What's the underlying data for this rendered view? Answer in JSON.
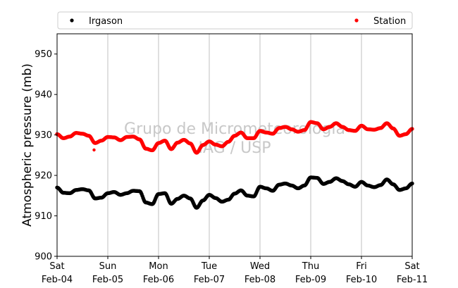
{
  "chart_data": {
    "type": "scatter",
    "title": "",
    "xlabel": "",
    "ylabel": "Atmospheric pressure (mb)",
    "ylim": [
      900,
      955
    ],
    "yticks": [
      900,
      910,
      920,
      930,
      940,
      950
    ],
    "xlim": [
      "2017-02-04",
      "2017-02-11"
    ],
    "xticks": [
      {
        "day": 0,
        "line1": "Sat",
        "line2": "Feb-04"
      },
      {
        "day": 1,
        "line1": "Sun",
        "line2": "Feb-05"
      },
      {
        "day": 2,
        "line1": "Mon",
        "line2": "Feb-06"
      },
      {
        "day": 3,
        "line1": "Tue",
        "line2": "Feb-07"
      },
      {
        "day": 4,
        "line1": "Wed",
        "line2": "Feb-08"
      },
      {
        "day": 5,
        "line1": "Thu",
        "line2": "Feb-09"
      },
      {
        "day": 6,
        "line1": "Fri",
        "line2": "Feb-10"
      },
      {
        "day": 7,
        "line1": "Sat",
        "line2": "Feb-11"
      }
    ],
    "grid": "vertical",
    "legend_position": "top",
    "watermark": [
      "Grupo de Micrometeorologia",
      "IAG / USP"
    ],
    "series": [
      {
        "name": "Irgason",
        "color": "#000000",
        "x": [
          "2017-02-04 00:00",
          "2017-02-04 03:00",
          "2017-02-04 06:00",
          "2017-02-04 09:00",
          "2017-02-04 12:00",
          "2017-02-04 15:00",
          "2017-02-04 18:00",
          "2017-02-04 21:00",
          "2017-02-05 00:00",
          "2017-02-05 03:00",
          "2017-02-05 06:00",
          "2017-02-05 09:00",
          "2017-02-05 12:00",
          "2017-02-05 15:00",
          "2017-02-05 18:00",
          "2017-02-05 21:00",
          "2017-02-06 00:00",
          "2017-02-06 03:00",
          "2017-02-06 06:00",
          "2017-02-06 09:00",
          "2017-02-06 12:00",
          "2017-02-06 15:00",
          "2017-02-06 18:00",
          "2017-02-06 21:00",
          "2017-02-07 00:00",
          "2017-02-07 03:00",
          "2017-02-07 06:00",
          "2017-02-07 09:00",
          "2017-02-07 12:00",
          "2017-02-07 15:00",
          "2017-02-07 18:00",
          "2017-02-07 21:00",
          "2017-02-08 00:00",
          "2017-02-08 03:00",
          "2017-02-08 06:00",
          "2017-02-08 09:00",
          "2017-02-08 12:00",
          "2017-02-08 15:00",
          "2017-02-08 18:00",
          "2017-02-08 21:00",
          "2017-02-09 00:00",
          "2017-02-09 03:00",
          "2017-02-09 06:00",
          "2017-02-09 09:00",
          "2017-02-09 12:00",
          "2017-02-09 15:00",
          "2017-02-09 18:00",
          "2017-02-09 21:00",
          "2017-02-10 00:00",
          "2017-02-10 03:00",
          "2017-02-10 06:00",
          "2017-02-10 09:00",
          "2017-02-10 12:00",
          "2017-02-10 15:00",
          "2017-02-10 18:00",
          "2017-02-10 21:00",
          "2017-02-11 00:00"
        ],
        "y": [
          917,
          915.7,
          915.6,
          916.4,
          916.6,
          916.3,
          914.3,
          914.5,
          915.6,
          915.9,
          915.2,
          915.6,
          916.2,
          916.1,
          913.3,
          912.9,
          915.4,
          915.6,
          913.0,
          914.2,
          915.0,
          914.3,
          912.0,
          913.8,
          915.2,
          914.4,
          913.5,
          914.0,
          915.5,
          916.3,
          915.0,
          914.8,
          917.2,
          916.8,
          916.2,
          917.7,
          918.0,
          917.5,
          916.8,
          917.5,
          919.5,
          919.4,
          917.9,
          918.4,
          919.3,
          918.6,
          917.8,
          917.2,
          918.4,
          917.5,
          917.1,
          917.6,
          919.0,
          917.8,
          916.4,
          916.8,
          918.0
        ]
      },
      {
        "name": "Station",
        "color": "#ff0000",
        "x": [
          "2017-02-04 00:00",
          "2017-02-04 03:00",
          "2017-02-04 06:00",
          "2017-02-04 09:00",
          "2017-02-04 12:00",
          "2017-02-04 15:00",
          "2017-02-04 18:00",
          "2017-02-04 21:00",
          "2017-02-05 00:00",
          "2017-02-05 03:00",
          "2017-02-05 06:00",
          "2017-02-05 09:00",
          "2017-02-05 12:00",
          "2017-02-05 15:00",
          "2017-02-05 18:00",
          "2017-02-05 21:00",
          "2017-02-06 00:00",
          "2017-02-06 03:00",
          "2017-02-06 06:00",
          "2017-02-06 09:00",
          "2017-02-06 12:00",
          "2017-02-06 15:00",
          "2017-02-06 18:00",
          "2017-02-06 21:00",
          "2017-02-07 00:00",
          "2017-02-07 03:00",
          "2017-02-07 06:00",
          "2017-02-07 09:00",
          "2017-02-07 12:00",
          "2017-02-07 15:00",
          "2017-02-07 18:00",
          "2017-02-07 21:00",
          "2017-02-08 00:00",
          "2017-02-08 03:00",
          "2017-02-08 06:00",
          "2017-02-08 09:00",
          "2017-02-08 12:00",
          "2017-02-08 15:00",
          "2017-02-08 18:00",
          "2017-02-08 21:00",
          "2017-02-09 00:00",
          "2017-02-09 03:00",
          "2017-02-09 06:00",
          "2017-02-09 09:00",
          "2017-02-09 12:00",
          "2017-02-09 15:00",
          "2017-02-09 18:00",
          "2017-02-09 21:00",
          "2017-02-10 00:00",
          "2017-02-10 03:00",
          "2017-02-10 06:00",
          "2017-02-10 09:00",
          "2017-02-10 12:00",
          "2017-02-10 15:00",
          "2017-02-10 18:00",
          "2017-02-10 21:00",
          "2017-02-11 00:00"
        ],
        "y": [
          930.2,
          929.2,
          929.6,
          930.5,
          930.3,
          929.8,
          928.0,
          928.6,
          929.5,
          929.4,
          928.7,
          929.5,
          929.6,
          928.9,
          926.6,
          926.2,
          928.0,
          928.6,
          926.5,
          928.1,
          928.8,
          927.9,
          925.6,
          927.5,
          928.4,
          927.6,
          927.2,
          928.3,
          929.8,
          930.6,
          929.2,
          929.2,
          931.0,
          930.6,
          930.3,
          931.7,
          932.0,
          931.4,
          930.8,
          931.2,
          933.2,
          932.9,
          931.4,
          932.0,
          932.9,
          932.0,
          931.2,
          931.0,
          932.3,
          931.4,
          931.3,
          931.7,
          932.9,
          931.6,
          929.8,
          930.2,
          931.5
        ]
      }
    ],
    "outliers": [
      {
        "series": "Station",
        "x": "2017-02-04 17:30",
        "y": 926.3
      }
    ]
  }
}
